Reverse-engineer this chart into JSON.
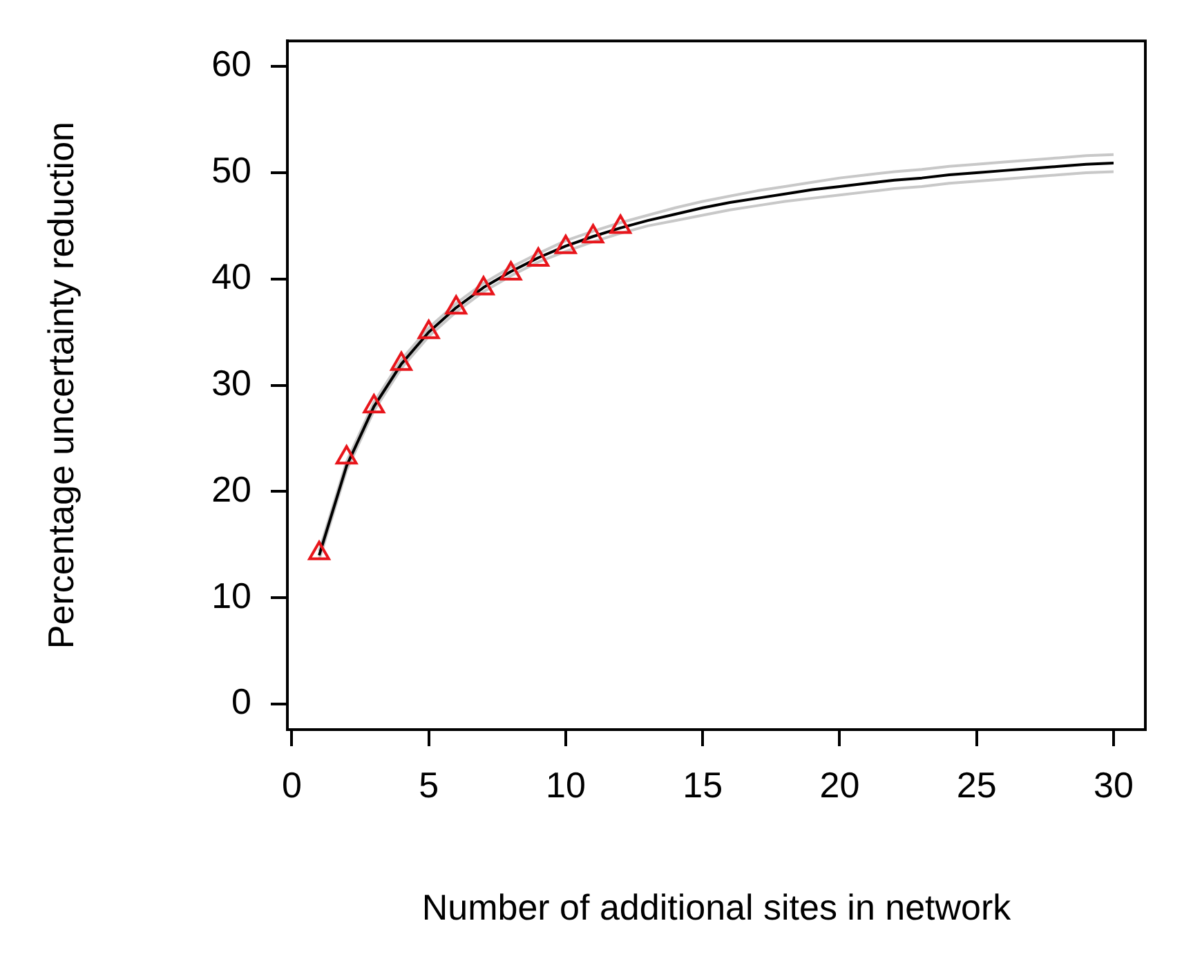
{
  "chart_data": {
    "type": "line",
    "xlabel": "Number of additional sites in network",
    "ylabel": "Percentage uncertainty reduction",
    "xlim": [
      -0.16,
      31.16
    ],
    "ylim": [
      -2.4,
      62.4
    ],
    "xticks": [
      0,
      5,
      10,
      15,
      20,
      25,
      30
    ],
    "yticks": [
      0,
      10,
      20,
      30,
      40,
      50,
      60
    ],
    "grid": false,
    "series": [
      {
        "color": "#c8c8c8",
        "marker": "none",
        "x": [
          1,
          2,
          3,
          4,
          5,
          6,
          7,
          8,
          9,
          10,
          11,
          12,
          13,
          14,
          15,
          16,
          17,
          18,
          19,
          20,
          21,
          22,
          23,
          24,
          25,
          26,
          27,
          28,
          29,
          30
        ],
        "values": [
          13.6,
          22,
          27.6,
          31.6,
          34.6,
          36.9,
          38.8,
          40.3,
          41.6,
          42.6,
          43.5,
          44.3,
          45,
          45.5,
          46,
          46.5,
          46.9,
          47.3,
          47.6,
          47.9,
          48.2,
          48.5,
          48.7,
          49,
          49.2,
          49.4,
          49.6,
          49.8,
          50,
          50.1
        ]
      },
      {
        "color": "#c8c8c8",
        "marker": "none",
        "x": [
          1,
          2,
          3,
          4,
          5,
          6,
          7,
          8,
          9,
          10,
          11,
          12,
          13,
          14,
          15,
          16,
          17,
          18,
          19,
          20,
          21,
          22,
          23,
          24,
          25,
          26,
          27,
          28,
          29,
          30
        ],
        "values": [
          14.4,
          22.8,
          28.4,
          32.4,
          35.4,
          37.7,
          39.6,
          41.1,
          42.4,
          43.6,
          44.5,
          45.3,
          46,
          46.7,
          47.3,
          47.8,
          48.3,
          48.7,
          49.1,
          49.5,
          49.8,
          50.1,
          50.3,
          50.6,
          50.8,
          51,
          51.2,
          51.4,
          51.6,
          51.7
        ]
      },
      {
        "color": "#000000",
        "marker": "none",
        "x": [
          1,
          2,
          3,
          4,
          5,
          6,
          7,
          8,
          9,
          10,
          11,
          12,
          13,
          14,
          15,
          16,
          17,
          18,
          19,
          20,
          21,
          22,
          23,
          24,
          25,
          26,
          27,
          28,
          29,
          30
        ],
        "values": [
          14,
          22.4,
          28,
          32,
          35,
          37.3,
          39.2,
          40.7,
          42,
          43.1,
          44,
          44.8,
          45.5,
          46.1,
          46.7,
          47.2,
          47.6,
          48,
          48.4,
          48.7,
          49,
          49.3,
          49.5,
          49.8,
          50,
          50.2,
          50.4,
          50.6,
          50.8,
          50.9
        ]
      },
      {
        "type": "scatter",
        "color": "#e8151b",
        "marker": "triangle",
        "x": [
          1,
          2,
          3,
          4,
          5,
          6,
          7,
          8,
          9,
          10,
          11,
          12
        ],
        "values": [
          14.2,
          23.2,
          28,
          32,
          35,
          37.3,
          39.1,
          40.5,
          41.8,
          43,
          44,
          44.9
        ]
      }
    ]
  }
}
